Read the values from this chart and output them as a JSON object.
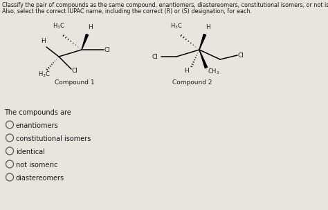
{
  "title_line1": "Classify the pair of compounds as the same compound, enantiomers, diastereomers, constitutional isomers, or not isomeric.",
  "title_line2": "Also, select the correct IUPAC name, including the correct (R) or (S) designation, for each.",
  "compound1_label": "Compound 1",
  "compound2_label": "Compound 2",
  "question_text": "The compounds are",
  "options": [
    "enantiomers",
    "constitutional isomers",
    "identical",
    "not isomeric",
    "diastereomers"
  ],
  "bg_color": "#e8e4de",
  "text_color": "#1a1a1a",
  "figsize": [
    4.74,
    3.04
  ],
  "dpi": 100
}
